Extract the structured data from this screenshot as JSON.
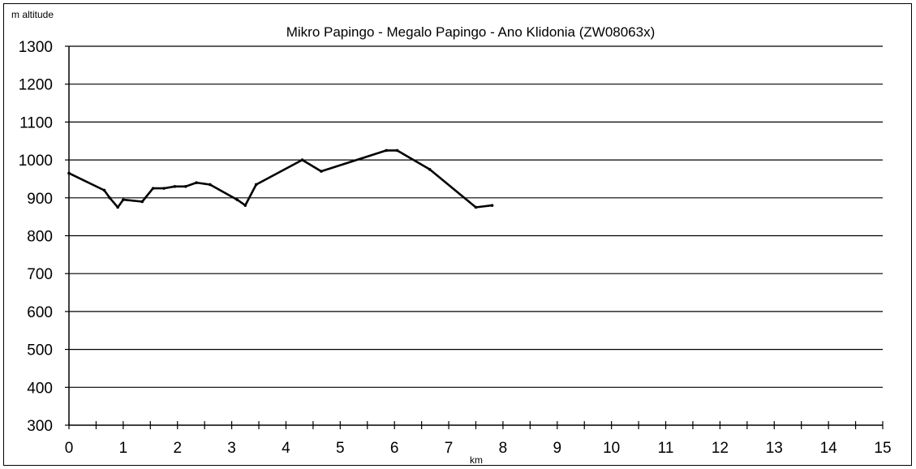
{
  "chart_data": {
    "type": "line",
    "title": "Mikro Papingo - Megalo Papingo - Ano Klidonia (ZW08063x)",
    "ylabel": "m altitude",
    "xlabel": "km",
    "xlim": [
      0,
      15
    ],
    "ylim": [
      300,
      1300
    ],
    "xticks": [
      "0",
      "1",
      "2",
      "3",
      "4",
      "5",
      "6",
      "7",
      "8",
      "9",
      "10",
      "11",
      "12",
      "13",
      "14",
      "15"
    ],
    "yticks": [
      "300",
      "400",
      "500",
      "600",
      "700",
      "800",
      "900",
      "1000",
      "1100",
      "1200",
      "1300"
    ],
    "grid": "horizontal",
    "series": [
      {
        "color": "#000000",
        "x": [
          0,
          0.65,
          0.75,
          0.9,
          1.0,
          1.35,
          1.55,
          1.75,
          1.95,
          2.15,
          2.35,
          2.6,
          3.1,
          3.25,
          3.45,
          4.3,
          4.65,
          5.85,
          6.05,
          6.65,
          7.5,
          7.8
        ],
        "y": [
          965,
          920,
          900,
          875,
          895,
          890,
          925,
          925,
          930,
          930,
          940,
          935,
          895,
          880,
          935,
          1000,
          970,
          1025,
          1025,
          975,
          875,
          880
        ]
      }
    ]
  }
}
